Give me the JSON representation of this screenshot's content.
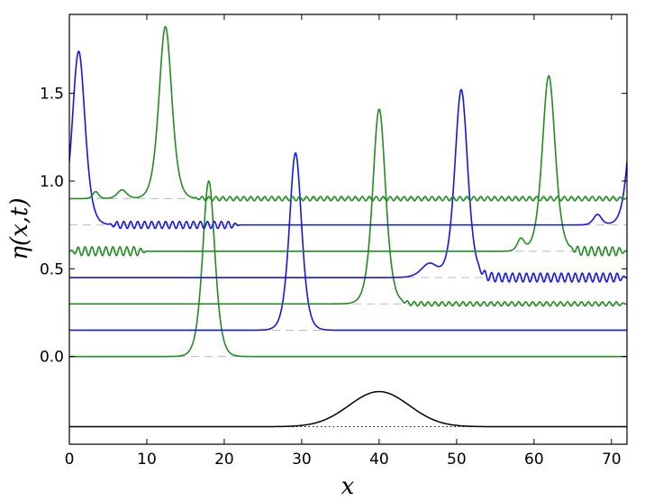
{
  "chart_data": {
    "type": "line",
    "xlabel": "x",
    "ylabel": "η(x,t)",
    "xlim": [
      0,
      72
    ],
    "ylim": [
      -0.5,
      1.95
    ],
    "grid": false,
    "x_ticks": [
      0,
      10,
      20,
      30,
      40,
      50,
      60,
      70
    ],
    "x_tick_labels": [
      "0",
      "10",
      "20",
      "30",
      "40",
      "50",
      "60",
      "70"
    ],
    "y_ticks": [
      0.0,
      0.5,
      1.0,
      1.5
    ],
    "y_tick_labels": [
      "0.0",
      "0.5",
      "1.0",
      "1.5"
    ],
    "colors": {
      "green": "#228b22",
      "blue": "#1515e6",
      "black": "#000000",
      "baseline": "#bbbbbb"
    },
    "series": [
      {
        "color": "green",
        "offset": 0.0,
        "peaks": [
          {
            "x": 18.0,
            "a": 1.0,
            "w": 1.05
          }
        ],
        "ripples": []
      },
      {
        "color": "blue",
        "offset": 0.15,
        "peaks": [
          {
            "x": 29.2,
            "a": 1.01,
            "w": 1.05
          }
        ],
        "ripples": []
      },
      {
        "color": "green",
        "offset": 0.3,
        "peaks": [
          {
            "x": 40.0,
            "a": 1.11,
            "w": 1.1
          }
        ],
        "ripples": [
          {
            "from": 42.5,
            "to": 72,
            "amp": 0.012,
            "period": 0.9
          }
        ]
      },
      {
        "color": "blue",
        "offset": 0.45,
        "peaks": [
          {
            "x": 50.6,
            "a": 1.07,
            "w": 1.1
          },
          {
            "x": 46.5,
            "a": 0.08,
            "w": 1.4
          }
        ],
        "ripples": [
          {
            "from": 52.5,
            "to": 72,
            "amp": 0.025,
            "period": 0.9
          }
        ]
      },
      {
        "color": "green",
        "offset": 0.6,
        "peaks": [
          {
            "x": 61.9,
            "a": 1.0,
            "w": 1.1
          },
          {
            "x": 58.3,
            "a": 0.07,
            "w": 0.6
          }
        ],
        "ripples": [
          {
            "from": 0,
            "to": 10,
            "amp": 0.025,
            "period": 0.9
          },
          {
            "from": 64.5,
            "to": 72,
            "amp": 0.025,
            "period": 0.9
          }
        ]
      },
      {
        "color": "blue",
        "offset": 0.75,
        "peaks": [
          {
            "x": 1.2,
            "a": 0.99,
            "w": 1.1
          },
          {
            "x": 73.2,
            "a": 0.99,
            "w": 1.1
          },
          {
            "x": 68.2,
            "a": 0.06,
            "w": 0.7
          }
        ],
        "ripples": [
          {
            "from": 5,
            "to": 22,
            "amp": 0.02,
            "period": 0.9
          }
        ]
      },
      {
        "color": "green",
        "offset": 0.9,
        "peaks": [
          {
            "x": 12.4,
            "a": 0.98,
            "w": 1.1
          },
          {
            "x": 6.8,
            "a": 0.05,
            "w": 0.8
          },
          {
            "x": 3.4,
            "a": 0.04,
            "w": 0.5
          }
        ],
        "ripples": [
          {
            "from": 16,
            "to": 72,
            "amp": 0.012,
            "period": 0.9
          }
        ]
      }
    ],
    "bottom_profile": {
      "color": "black",
      "baseline_y": -0.4,
      "peak_x": 40,
      "peak_height": 0.2,
      "width": 5.5
    }
  }
}
